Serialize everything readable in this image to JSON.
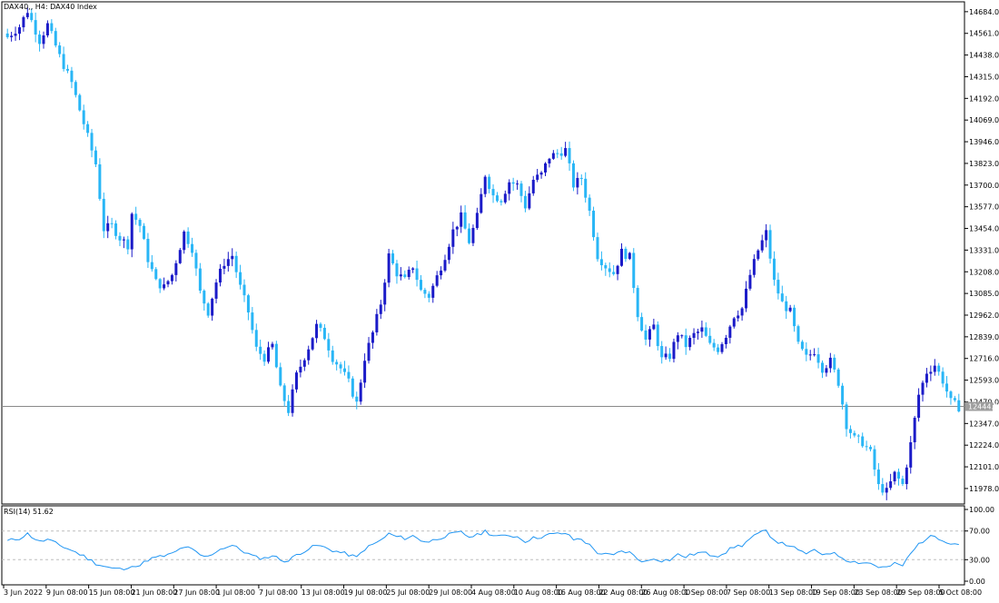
{
  "header": {
    "symbol_label": "DAX40,, H4:  DAX40 Index"
  },
  "colors": {
    "bull": "#1b1bc8",
    "bear": "#29b6f6",
    "rsi_line": "#2196f3",
    "grid_level": "#bdbdbd",
    "price_line": "#8a8a8a",
    "price_tag_bg": "#9e9e9e",
    "frame": "#000000"
  },
  "chart_data": [
    {
      "type": "candlestick",
      "title": "DAX40,, H4:  DAX40 Index",
      "timeframe": "H4",
      "ylim": [
        11890,
        14740
      ],
      "y_ticks": [
        "14684.0",
        "14561.0",
        "14438.0",
        "14315.0",
        "14192.0",
        "14069.0",
        "13946.0",
        "13823.0",
        "13700.0",
        "13577.0",
        "13454.0",
        "13331.0",
        "13208.0",
        "13085.0",
        "12962.0",
        "12839.0",
        "12716.0",
        "12593.0",
        "12470.0",
        "12347.0",
        "12224.0",
        "12101.0",
        "11978.0"
      ],
      "x_ticks": [
        "3 Jun 2022",
        "9 Jun 08:00",
        "15 Jun 08:00",
        "21 Jun 08:00",
        "27 Jun 08:00",
        "1 Jul 08:00",
        "7 Jul 08:00",
        "13 Jul 08:00",
        "19 Jul 08:00",
        "25 Jul 08:00",
        "29 Jul 08:00",
        "4 Aug 08:00",
        "10 Aug 08:00",
        "16 Aug 08:00",
        "22 Aug 08:00",
        "26 Aug 08:00",
        "1 Sep 08:00",
        "7 Sep 08:00",
        "13 Sep 08:00",
        "19 Sep 08:00",
        "23 Sep 08:00",
        "29 Sep 08:00",
        "5 Oct 08:00"
      ],
      "current_price": "12444.0",
      "close_path": [
        [
          0,
          14540
        ],
        [
          3,
          14600
        ],
        [
          5,
          14690
        ],
        [
          8,
          14520
        ],
        [
          10,
          14610
        ],
        [
          13,
          14430
        ],
        [
          16,
          14280
        ],
        [
          19,
          14050
        ],
        [
          22,
          13820
        ],
        [
          24,
          13450
        ],
        [
          26,
          13470
        ],
        [
          28,
          13400
        ],
        [
          30,
          13360
        ],
        [
          31,
          13540
        ],
        [
          33,
          13470
        ],
        [
          35,
          13280
        ],
        [
          37,
          13150
        ],
        [
          39,
          13120
        ],
        [
          41,
          13190
        ],
        [
          44,
          13430
        ],
        [
          46,
          13340
        ],
        [
          48,
          13090
        ],
        [
          50,
          12980
        ],
        [
          52,
          13150
        ],
        [
          54,
          13260
        ],
        [
          56,
          13300
        ],
        [
          58,
          13120
        ],
        [
          60,
          12980
        ],
        [
          62,
          12770
        ],
        [
          64,
          12720
        ],
        [
          66,
          12790
        ],
        [
          68,
          12540
        ],
        [
          70,
          12420
        ],
        [
          72,
          12620
        ],
        [
          75,
          12780
        ],
        [
          77,
          12900
        ],
        [
          79,
          12840
        ],
        [
          81,
          12720
        ],
        [
          83,
          12660
        ],
        [
          85,
          12580
        ],
        [
          87,
          12460
        ],
        [
          89,
          12720
        ],
        [
          91,
          12860
        ],
        [
          93,
          13030
        ],
        [
          95,
          13300
        ],
        [
          97,
          13200
        ],
        [
          99,
          13160
        ],
        [
          101,
          13240
        ],
        [
          103,
          13100
        ],
        [
          105,
          13070
        ],
        [
          107,
          13180
        ],
        [
          109,
          13300
        ],
        [
          111,
          13440
        ],
        [
          113,
          13520
        ],
        [
          115,
          13380
        ],
        [
          117,
          13520
        ],
        [
          119,
          13760
        ],
        [
          121,
          13640
        ],
        [
          123,
          13620
        ],
        [
          125,
          13720
        ],
        [
          127,
          13700
        ],
        [
          129,
          13580
        ],
        [
          131,
          13730
        ],
        [
          133,
          13760
        ],
        [
          135,
          13860
        ],
        [
          137,
          13880
        ],
        [
          139,
          13900
        ],
        [
          141,
          13700
        ],
        [
          143,
          13740
        ],
        [
          145,
          13550
        ],
        [
          147,
          13300
        ],
        [
          149,
          13240
        ],
        [
          151,
          13200
        ],
        [
          153,
          13320
        ],
        [
          155,
          13290
        ],
        [
          157,
          12970
        ],
        [
          159,
          12820
        ],
        [
          161,
          12900
        ],
        [
          163,
          12710
        ],
        [
          165,
          12730
        ],
        [
          167,
          12860
        ],
        [
          169,
          12790
        ],
        [
          171,
          12850
        ],
        [
          173,
          12880
        ],
        [
          175,
          12790
        ],
        [
          177,
          12770
        ],
        [
          179,
          12850
        ],
        [
          181,
          12960
        ],
        [
          183,
          13000
        ],
        [
          185,
          13190
        ],
        [
          187,
          13330
        ],
        [
          189,
          13430
        ],
        [
          191,
          13150
        ],
        [
          193,
          13030
        ],
        [
          195,
          12980
        ],
        [
          197,
          12790
        ],
        [
          199,
          12720
        ],
        [
          201,
          12760
        ],
        [
          203,
          12660
        ],
        [
          205,
          12700
        ],
        [
          207,
          12580
        ],
        [
          209,
          12340
        ],
        [
          211,
          12260
        ],
        [
          213,
          12240
        ],
        [
          215,
          12180
        ],
        [
          217,
          11990
        ],
        [
          219,
          11960
        ],
        [
          221,
          12060
        ],
        [
          223,
          12000
        ],
        [
          225,
          12230
        ],
        [
          227,
          12510
        ],
        [
          229,
          12640
        ],
        [
          231,
          12680
        ],
        [
          233,
          12590
        ],
        [
          235,
          12470
        ],
        [
          237,
          12440
        ]
      ]
    },
    {
      "type": "line",
      "title": "RSI(14) 51.62",
      "indicator": "RSI(14)",
      "last_value": 51.62,
      "ylim": [
        0,
        100
      ],
      "y_ticks": [
        "100.00",
        "70.00",
        "30.00",
        "0.00"
      ],
      "levels": [
        70,
        30
      ],
      "path": [
        [
          0,
          56
        ],
        [
          3,
          60
        ],
        [
          5,
          66
        ],
        [
          8,
          55
        ],
        [
          10,
          58
        ],
        [
          13,
          50
        ],
        [
          16,
          43
        ],
        [
          19,
          35
        ],
        [
          22,
          25
        ],
        [
          24,
          21
        ],
        [
          26,
          18
        ],
        [
          28,
          17
        ],
        [
          30,
          16
        ],
        [
          31,
          23
        ],
        [
          33,
          22
        ],
        [
          35,
          30
        ],
        [
          37,
          33
        ],
        [
          39,
          35
        ],
        [
          41,
          38
        ],
        [
          44,
          48
        ],
        [
          46,
          44
        ],
        [
          48,
          36
        ],
        [
          50,
          34
        ],
        [
          52,
          42
        ],
        [
          54,
          47
        ],
        [
          56,
          50
        ],
        [
          58,
          44
        ],
        [
          60,
          38
        ],
        [
          62,
          33
        ],
        [
          64,
          32
        ],
        [
          66,
          36
        ],
        [
          68,
          30
        ],
        [
          70,
          28
        ],
        [
          72,
          37
        ],
        [
          75,
          45
        ],
        [
          77,
          50
        ],
        [
          79,
          47
        ],
        [
          81,
          43
        ],
        [
          83,
          40
        ],
        [
          85,
          37
        ],
        [
          87,
          33
        ],
        [
          89,
          45
        ],
        [
          91,
          51
        ],
        [
          93,
          57
        ],
        [
          95,
          66
        ],
        [
          97,
          62
        ],
        [
          99,
          60
        ],
        [
          101,
          63
        ],
        [
          103,
          57
        ],
        [
          105,
          55
        ],
        [
          107,
          59
        ],
        [
          109,
          63
        ],
        [
          111,
          66
        ],
        [
          113,
          68
        ],
        [
          115,
          62
        ],
        [
          117,
          64
        ],
        [
          119,
          70
        ],
        [
          121,
          64
        ],
        [
          123,
          62
        ],
        [
          125,
          64
        ],
        [
          127,
          62
        ],
        [
          129,
          56
        ],
        [
          131,
          60
        ],
        [
          133,
          62
        ],
        [
          135,
          65
        ],
        [
          137,
          66
        ],
        [
          139,
          67
        ],
        [
          141,
          58
        ],
        [
          143,
          59
        ],
        [
          145,
          50
        ],
        [
          147,
          40
        ],
        [
          149,
          37
        ],
        [
          151,
          36
        ],
        [
          153,
          42
        ],
        [
          155,
          40
        ],
        [
          157,
          31
        ],
        [
          159,
          27
        ],
        [
          161,
          32
        ],
        [
          163,
          29
        ],
        [
          165,
          30
        ],
        [
          167,
          37
        ],
        [
          169,
          34
        ],
        [
          171,
          38
        ],
        [
          173,
          40
        ],
        [
          175,
          37
        ],
        [
          177,
          36
        ],
        [
          179,
          41
        ],
        [
          181,
          48
        ],
        [
          183,
          50
        ],
        [
          185,
          59
        ],
        [
          187,
          66
        ],
        [
          189,
          70
        ],
        [
          191,
          58
        ],
        [
          193,
          52
        ],
        [
          195,
          50
        ],
        [
          197,
          42
        ],
        [
          199,
          39
        ],
        [
          201,
          42
        ],
        [
          203,
          38
        ],
        [
          205,
          40
        ],
        [
          207,
          36
        ],
        [
          209,
          30
        ],
        [
          211,
          27
        ],
        [
          213,
          26
        ],
        [
          215,
          25
        ],
        [
          217,
          20
        ],
        [
          219,
          19
        ],
        [
          221,
          24
        ],
        [
          223,
          22
        ],
        [
          225,
          38
        ],
        [
          227,
          52
        ],
        [
          229,
          60
        ],
        [
          231,
          63
        ],
        [
          233,
          58
        ],
        [
          235,
          53
        ],
        [
          237,
          51.62
        ]
      ]
    }
  ]
}
